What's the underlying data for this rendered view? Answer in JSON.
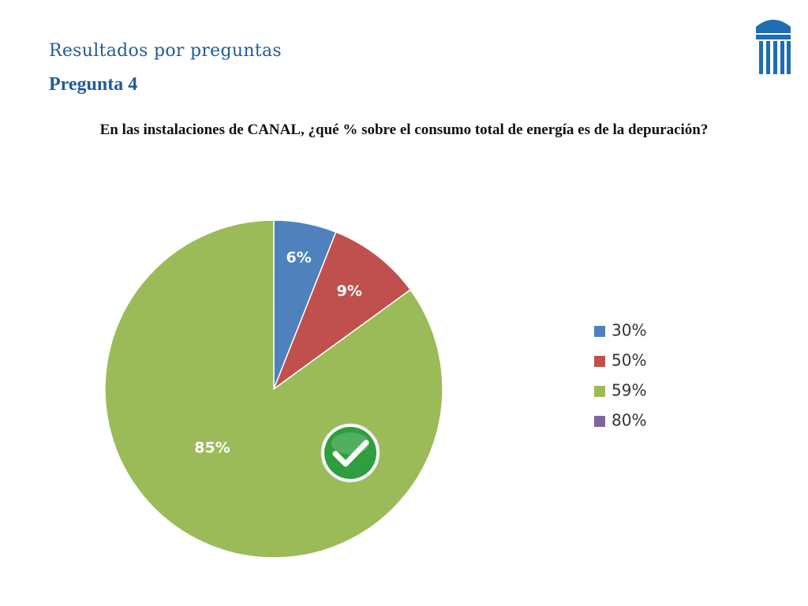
{
  "header": {
    "section_title": "Resultados por preguntas",
    "question_number": "Pregunta 4",
    "question_text": "En las instalaciones de CANAL, ¿qué % sobre el consumo total de energía es de la depuración?"
  },
  "logo": {
    "icon": "column-building-icon",
    "color": "#1f6db5"
  },
  "correct_marker": {
    "icon": "checkmark-icon",
    "color": "#2e9e3e"
  },
  "chart_data": {
    "type": "pie",
    "categories": [
      "30%",
      "50%",
      "59%",
      "80%"
    ],
    "values": [
      6,
      9,
      85,
      0
    ],
    "data_labels": [
      "6%",
      "9%",
      "85%",
      ""
    ],
    "colors": [
      "#4f81bd",
      "#c0504d",
      "#9bbb59",
      "#8064a2"
    ],
    "legend": {
      "placement": "right",
      "entries": [
        "30%",
        "50%",
        "59%",
        "80%"
      ]
    },
    "correct_answer": "59%"
  }
}
